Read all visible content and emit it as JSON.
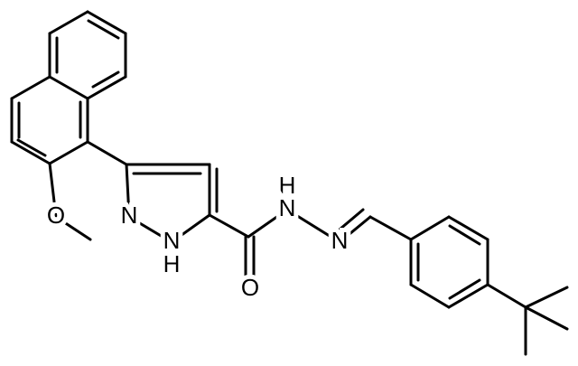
{
  "atoms": [
    {
      "label": "O"
    },
    {
      "label": "N"
    },
    {
      "label": "N"
    },
    {
      "label": "H"
    },
    {
      "label": "H"
    },
    {
      "label": "N"
    },
    {
      "label": "N"
    },
    {
      "label": "O"
    }
  ]
}
